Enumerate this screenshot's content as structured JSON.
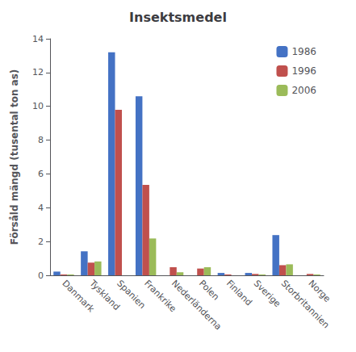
{
  "chart_data": {
    "type": "bar",
    "title": "Insektsmedel",
    "ylabel": "Försåld mängd (tusental ton as)",
    "categories": [
      "Danmark",
      "Tyskland",
      "Spanien",
      "Frankrike",
      "Nederländerna",
      "Polen",
      "Finland",
      "Sverige",
      "Storbritannien",
      "Norge"
    ],
    "series": [
      {
        "name": "1986",
        "color": "#4472C4",
        "values": [
          0.22,
          1.42,
          13.2,
          10.6,
          0.0,
          0.0,
          0.14,
          0.14,
          2.38,
          0.0
        ]
      },
      {
        "name": "1996",
        "color": "#C0504D",
        "values": [
          0.05,
          0.75,
          9.8,
          5.35,
          0.48,
          0.4,
          0.05,
          0.08,
          0.6,
          0.08
        ]
      },
      {
        "name": "2006",
        "color": "#9BBB59",
        "values": [
          0.05,
          0.82,
          0.0,
          2.18,
          0.18,
          0.48,
          0.0,
          0.05,
          0.65,
          0.05
        ]
      }
    ],
    "ylim": [
      0,
      14
    ],
    "yticks": [
      0,
      2,
      4,
      6,
      8,
      10,
      12,
      14
    ],
    "grid": false,
    "legend": "upper right"
  }
}
